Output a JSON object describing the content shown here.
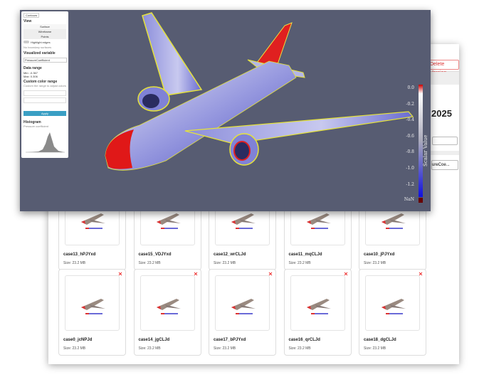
{
  "background": {
    "delete_button": "Delete Version",
    "year": "2025",
    "select": "ureCoe...",
    "cards": [
      {
        "name": "case13_hPJYxd",
        "size": "Size: 23.2 MB"
      },
      {
        "name": "case15_VDJYxd",
        "size": "Size: 23.2 MB"
      },
      {
        "name": "case12_wrCLJd",
        "size": "Size: 23.2 MB"
      },
      {
        "name": "case11_mqCLJd",
        "size": "Size: 23.2 MB"
      },
      {
        "name": "case10_jPJYxd",
        "size": "Size: 23.2 MB"
      },
      {
        "name": "case0_jcNPJd",
        "size": "Size: 23.2 MB"
      },
      {
        "name": "case14_jgCLJd",
        "size": "Size: 23.2 MB"
      },
      {
        "name": "case17_bPJYxd",
        "size": "Size: 23.2 MB"
      },
      {
        "name": "case16_qrCLJd",
        "size": "Size: 23.2 MB"
      },
      {
        "name": "case18_dgCLJd",
        "size": "Size: 23.2 MB"
      }
    ]
  },
  "viewer": {
    "panel": {
      "button": "Contours",
      "view_heading": "View",
      "view_options": [
        "Surface",
        "Wireframe",
        "Points"
      ],
      "toggle": "Highlight edges",
      "note": "No boundary surfaces",
      "variable_heading": "Visualized variable",
      "variable": "PressureCoefficient",
      "range_heading": "Data range",
      "min": "Min: -0.367",
      "max": "Max: 0.306",
      "custom_heading": "Custom color range",
      "custom_note": "Custom the range to adjust colors",
      "apply": "Apply",
      "histogram_heading": "Histogram",
      "histogram_note": "Pressure coefficient"
    },
    "colorbar": {
      "title": "Scalar Value",
      "ticks": [
        "0.0",
        "-0.2",
        "-0.4",
        "-0.6",
        "-0.8",
        "-1.0",
        "-1.2"
      ],
      "nan": "NaN"
    }
  }
}
